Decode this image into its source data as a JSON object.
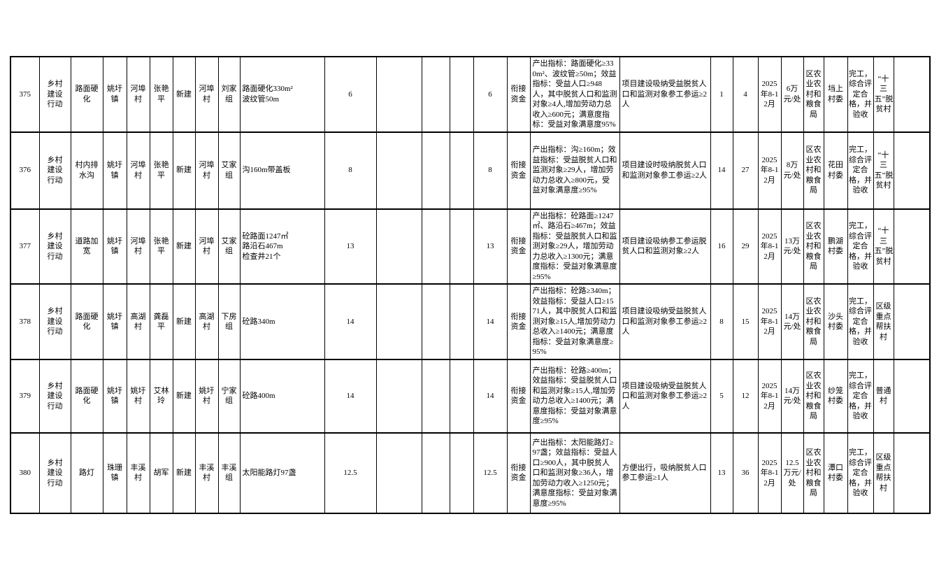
{
  "colors": {
    "background": "#ffffff",
    "grid_border": "#000000",
    "text": "#000000"
  },
  "table": {
    "visible_row_numbers": [
      "375",
      "376",
      "377",
      "378",
      "379",
      "380"
    ],
    "rows": [
      [
        "375",
        "乡村建设行动",
        "路面硬化",
        "姚圩镇",
        "河埠村",
        "张艳平",
        "新建",
        "河埠村",
        "刘家组",
        "路面硬化330m²\n波纹管50m",
        "6",
        "",
        "",
        "",
        "6",
        "衔接资金",
        "产出指标：路面硬化≥330m²、波纹管≥50m；效益指标：受益人口≥948人，其中脱贫人口和监测对象≥4人,增加劳动力总收入≥600元；满意度指标：受益对象满意度95%",
        "项目建设吸纳受益脱贫人口和监测对象参工参运≥2人",
        "1",
        "4",
        "2025年8-12月",
        "6万元/处",
        "区农业农村和粮食局",
        "垱上村委",
        "完工，综合评定合格，并验收",
        "“十三五”脱贫村",
        ""
      ],
      [
        "376",
        "乡村建设行动",
        "村内排水沟",
        "姚圩镇",
        "河埠村",
        "张艳平",
        "新建",
        "河埠村",
        "艾家组",
        "沟160m带盖板",
        "8",
        "",
        "",
        "",
        "8",
        "衔接资金",
        "产出指标：沟≥160m；效益指标：受益脱贫人口和监测对象≥29人，增加劳动力总收入≥800元，受益对象满意度≥95%",
        "项目建设时吸纳脱贫人口和监测对象参工参运≥2人",
        "14",
        "27",
        "2025年8-12月",
        "8万元/处",
        "区农业农村和粮食局",
        "花田村委",
        "完工，综合评定合格，并验收",
        "“十三五”脱贫村",
        ""
      ],
      [
        "377",
        "乡村建设行动",
        "道路加宽",
        "姚圩镇",
        "河埠村",
        "张艳平",
        "新建",
        "河埠村",
        "艾家组",
        "砼路面1247㎡\n路沿石467m\n检查井21个",
        "13",
        "",
        "",
        "",
        "13",
        "衔接资金",
        "产出指标：砼路面≥1247㎡、路沿石≥467m；效益指标：受益脱贫人口和监测对象≥29人，增加劳动力总收入≥1300元；满意度指标：受益对象满意度≥95%",
        "项目建设吸纳参工参运脱贫人口和监测对象≥2人",
        "16",
        "29",
        "2025年8-12月",
        "13万元/处",
        "区农业农村和粮食局",
        "鹏湖村委",
        "完工，综合评定合格，并验收",
        "“十三五”脱贫村",
        ""
      ],
      [
        "378",
        "乡村建设行动",
        "路面硬化",
        "姚圩镇",
        "高湖村",
        "龚磊平",
        "新建",
        "高湖村",
        "下房组",
        "砼路340m",
        "14",
        "",
        "",
        "",
        "14",
        "衔接资金",
        "产出指标：砼路≥340m；效益指标：受益人口≥1571人，其中脱贫人口和监测对象≥15人,增加劳动力总收入≥1400元；满意度指标：受益对象满意度≥95%",
        "项目建设吸纳受益脱贫人口和监测对象参工参运≥2人",
        "8",
        "15",
        "2025年8-12月",
        "14万元/处",
        "区农业农村和粮食局",
        "沙头村委",
        "完工，综合评定合格，并验收",
        "区级重点帮扶村",
        ""
      ],
      [
        "379",
        "乡村建设行动",
        "路面硬化",
        "姚圩镇",
        "姚圩村",
        "艾林玲",
        "新建",
        "姚圩村",
        "宁家组",
        "砼路400m",
        "14",
        "",
        "",
        "",
        "14",
        "衔接资金",
        "产出指标：砼路≥400m；效益指标：受益脱贫人口和监测对象≥15人,增加劳动力总收入≥1400元；满意度指标：受益对象满意度≥95%",
        "项目建设吸纳受益脱贫人口和监测对象参工参运≥2人",
        "5",
        "12",
        "2025年8-12月",
        "14万元/处",
        "区农业农村和粮食局",
        "纱笼村委",
        "完工，综合评定合格，并验收",
        "普通村",
        ""
      ],
      [
        "380",
        "乡村建设行动",
        "路灯",
        "珠珊镇",
        "丰溪村",
        "胡军",
        "新建",
        "丰溪村",
        "丰溪组",
        "太阳能路灯97盏",
        "12.5",
        "",
        "",
        "",
        "12.5",
        "衔接资金",
        "产出指标：太阳能路灯≥97盏；效益指标：受益人口≥900人，其中脱贫人口和监测对象≥36人，增加劳动力收入≥1250元；满意度指标：受益对象满意度≥95%",
        "方便出行，吸纳脱贫人口参工参运≥1人",
        "13",
        "36",
        "2025年8-12月",
        "12.5万元/处",
        "区农业农村和粮食局",
        "潭口村委",
        "完工，综合评定合格，并验收",
        "区级重点帮扶村",
        ""
      ]
    ]
  }
}
